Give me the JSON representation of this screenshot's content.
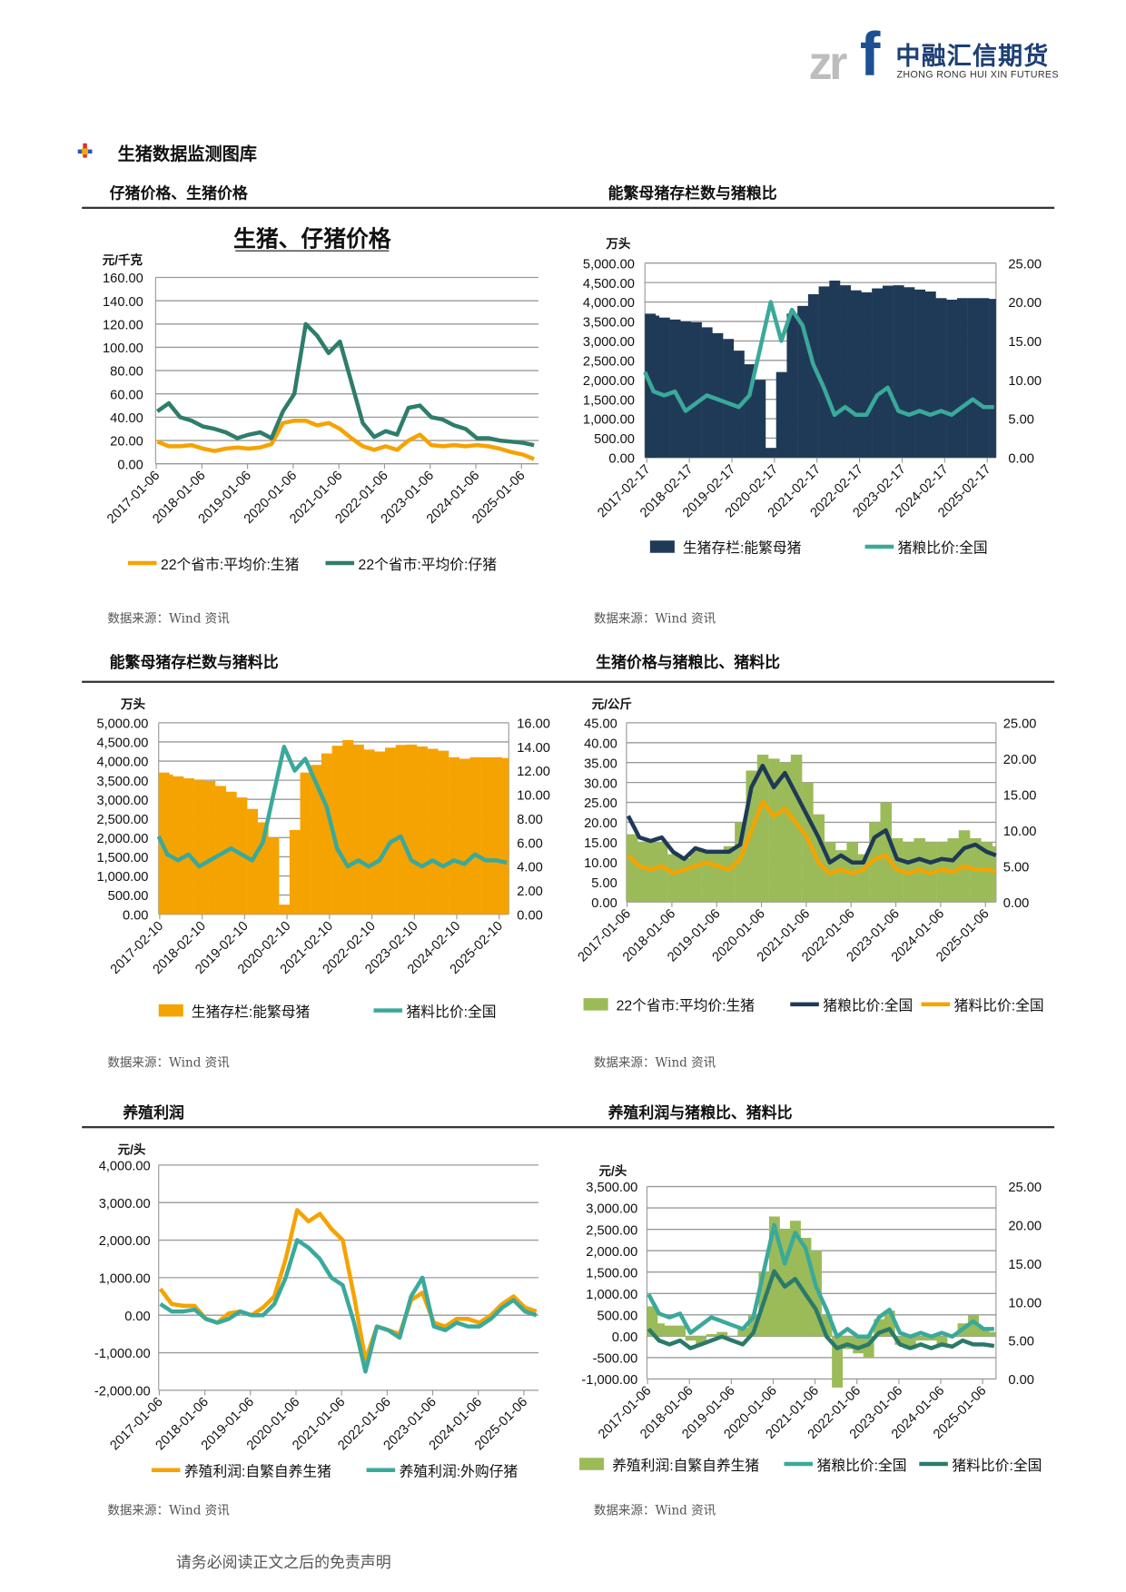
{
  "header": {
    "logo_zr": "zr",
    "logo_f": "f",
    "logo_cn": "中融汇信期货",
    "logo_en": "ZHONG RONG HUI XIN FUTURES"
  },
  "section_title": "生猪数据监测图库",
  "panels": [
    {
      "heading": "仔猪价格、生猪价格",
      "source": "数据来源：Wind 资讯"
    },
    {
      "heading": "能繁母猪存栏数与猪粮比",
      "source": "数据来源：Wind 资讯"
    },
    {
      "heading": "能繁母猪存栏数与猪料比",
      "source": "数据来源：Wind 资讯"
    },
    {
      "heading": "生猪价格与猪粮比、猪料比",
      "source": "数据来源：Wind 资讯"
    },
    {
      "heading": "养殖利润",
      "source": "数据来源：Wind 资讯"
    },
    {
      "heading": "养殖利润与猪粮比、猪料比",
      "source": "数据来源：Wind 资讯"
    }
  ],
  "footer": "请务必阅读正文之后的免责声明",
  "chart_data": [
    {
      "type": "line",
      "title": "生猪、仔猪价格",
      "ylabel": "元/千克",
      "ylim": [
        0,
        160
      ],
      "yticks_left": [
        "0.00",
        "20.00",
        "40.00",
        "60.00",
        "80.00",
        "100.00",
        "120.00",
        "140.00",
        "160.00"
      ],
      "xlim": [
        "2017-01-01",
        "2025-05-20"
      ],
      "xticks": [
        "2017-01-06",
        "2018-01-06",
        "2019-01-06",
        "2020-01-06",
        "2021-01-06",
        "2022-01-06",
        "2023-01-06",
        "2024-01-06",
        "2025-01-06"
      ],
      "grid": true,
      "legend": "bottom",
      "x": [
        "2017-01",
        "2017-04",
        "2017-07",
        "2017-10",
        "2018-01",
        "2018-04",
        "2018-07",
        "2018-10",
        "2019-01",
        "2019-04",
        "2019-07",
        "2019-10",
        "2020-01",
        "2020-04",
        "2020-07",
        "2020-10",
        "2021-01",
        "2021-04",
        "2021-07",
        "2021-10",
        "2022-01",
        "2022-04",
        "2022-07",
        "2022-10",
        "2023-01",
        "2023-04",
        "2023-07",
        "2023-10",
        "2024-01",
        "2024-04",
        "2024-07",
        "2024-10",
        "2025-01",
        "2025-04"
      ],
      "series": [
        {
          "name": "22个省市:平均价:生猪",
          "axis": "left",
          "kind": "line",
          "color": "#f5a300",
          "values": [
            19,
            15,
            15,
            16,
            13,
            11,
            13,
            14,
            13,
            14,
            17,
            35,
            37,
            37,
            33,
            35,
            30,
            22,
            15,
            12,
            15,
            12,
            20,
            25,
            16,
            15,
            16,
            15,
            16,
            15,
            13,
            10,
            8,
            4
          ]
        },
        {
          "name": "22个省市:平均价:仔猪",
          "axis": "left",
          "kind": "line",
          "color": "#2e7d6b",
          "values": [
            45,
            52,
            40,
            37,
            32,
            30,
            27,
            22,
            25,
            27,
            22,
            45,
            60,
            120,
            110,
            95,
            105,
            70,
            35,
            23,
            28,
            25,
            48,
            50,
            40,
            38,
            33,
            30,
            22,
            22,
            20,
            19,
            18,
            16
          ]
        }
      ]
    },
    {
      "type": "bar+line",
      "ylabel": "万头",
      "ylim": [
        0,
        5000
      ],
      "yticks_left": [
        "0.00",
        "500.00",
        "1,000.00",
        "1,500.00",
        "2,000.00",
        "2,500.00",
        "3,000.00",
        "3,500.00",
        "4,000.00",
        "4,500.00",
        "5,000.00"
      ],
      "ylim_right": [
        0,
        25
      ],
      "yticks_right": [
        "0.00",
        "5.00",
        "10.00",
        "15.00",
        "20.00",
        "25.00"
      ],
      "xlim": [
        "2017-02-01",
        "2025-05-01"
      ],
      "xticks": [
        "2017-02-17",
        "2018-02-17",
        "2019-02-17",
        "2020-02-17",
        "2021-02-17",
        "2022-02-17",
        "2023-02-17",
        "2024-02-17",
        "2025-02-17"
      ],
      "grid": true,
      "legend": "bottom",
      "x": [
        "2017-01",
        "2017-04",
        "2017-07",
        "2017-10",
        "2018-01",
        "2018-04",
        "2018-07",
        "2018-10",
        "2019-01",
        "2019-04",
        "2019-07",
        "2019-10",
        "2020-01",
        "2020-04",
        "2020-07",
        "2020-10",
        "2021-01",
        "2021-04",
        "2021-07",
        "2021-10",
        "2022-01",
        "2022-04",
        "2022-07",
        "2022-10",
        "2023-01",
        "2023-04",
        "2023-07",
        "2023-10",
        "2024-01",
        "2024-04",
        "2024-07",
        "2024-10",
        "2025-01",
        "2025-04"
      ],
      "series": [
        {
          "name": "生猪存栏:能繁母猪",
          "axis": "left",
          "kind": "area",
          "color": "#1f3a56",
          "values": [
            3700,
            3650,
            3600,
            3550,
            3500,
            3480,
            3350,
            3200,
            3050,
            2750,
            2400,
            2000,
            250,
            2200,
            3700,
            3900,
            4200,
            4400,
            4550,
            4430,
            4300,
            4250,
            4350,
            4420,
            4430,
            4380,
            4320,
            4270,
            4100,
            4060,
            4100,
            4100,
            4100,
            4080
          ]
        },
        {
          "name": "猪粮比价:全国",
          "axis": "right",
          "kind": "line",
          "color": "#3aa99b",
          "values": [
            11,
            8.5,
            8,
            8.5,
            6,
            7,
            8,
            7.5,
            7,
            6.5,
            8,
            14,
            20,
            15,
            19,
            17,
            12,
            9,
            5.5,
            6.5,
            5.5,
            5.5,
            8,
            9,
            6,
            5.5,
            6,
            5.5,
            6,
            5.5,
            6.5,
            7.5,
            6.5,
            6.5
          ]
        }
      ]
    },
    {
      "type": "bar+line",
      "ylabel": "万头",
      "ylim": [
        0,
        5000
      ],
      "yticks_left": [
        "0.00",
        "500.00",
        "1,000.00",
        "1,500.00",
        "2,000.00",
        "2,500.00",
        "3,000.00",
        "3,500.00",
        "4,000.00",
        "4,500.00",
        "5,000.00"
      ],
      "ylim_right": [
        0,
        16
      ],
      "yticks_right": [
        "0.00",
        "2.00",
        "4.00",
        "6.00",
        "8.00",
        "10.00",
        "12.00",
        "14.00",
        "16.00"
      ],
      "xlim": [
        "2017-02-01",
        "2025-05-01"
      ],
      "xticks": [
        "2017-02-10",
        "2018-02-10",
        "2019-02-10",
        "2020-02-10",
        "2021-02-10",
        "2022-02-10",
        "2023-02-10",
        "2024-02-10",
        "2025-02-10"
      ],
      "grid": true,
      "legend": "bottom",
      "x": [
        "2017-01",
        "2017-04",
        "2017-07",
        "2017-10",
        "2018-01",
        "2018-04",
        "2018-07",
        "2018-10",
        "2019-01",
        "2019-04",
        "2019-07",
        "2019-10",
        "2020-01",
        "2020-04",
        "2020-07",
        "2020-10",
        "2021-01",
        "2021-04",
        "2021-07",
        "2021-10",
        "2022-01",
        "2022-04",
        "2022-07",
        "2022-10",
        "2023-01",
        "2023-04",
        "2023-07",
        "2023-10",
        "2024-01",
        "2024-04",
        "2024-07",
        "2024-10",
        "2025-01",
        "2025-04"
      ],
      "series": [
        {
          "name": "生猪存栏:能繁母猪",
          "axis": "left",
          "kind": "area",
          "color": "#f5a300",
          "values": [
            3700,
            3650,
            3600,
            3550,
            3500,
            3480,
            3350,
            3200,
            3050,
            2750,
            2400,
            2000,
            250,
            2200,
            3700,
            3900,
            4200,
            4400,
            4550,
            4430,
            4300,
            4250,
            4350,
            4420,
            4430,
            4380,
            4320,
            4270,
            4100,
            4060,
            4100,
            4100,
            4100,
            4080
          ]
        },
        {
          "name": "猪料比价:全国",
          "axis": "right",
          "kind": "line",
          "color": "#3aa99b",
          "values": [
            6.5,
            5,
            4.5,
            5,
            4,
            4.5,
            5,
            5.5,
            5,
            4.5,
            6,
            10,
            14,
            12,
            13,
            11,
            9,
            5.5,
            4,
            4.5,
            4,
            4.5,
            6,
            6.5,
            4.5,
            4,
            4.5,
            4,
            4.5,
            4.2,
            5,
            4.5,
            4.5,
            4.3
          ]
        }
      ]
    },
    {
      "type": "bar+line",
      "ylabel": "元/公斤",
      "ylim": [
        0,
        45
      ],
      "yticks_left": [
        "0.00",
        "5.00",
        "10.00",
        "15.00",
        "20.00",
        "25.00",
        "30.00",
        "35.00",
        "40.00",
        "45.00"
      ],
      "ylim_right": [
        0,
        25
      ],
      "yticks_right": [
        "0.00",
        "5.00",
        "10.00",
        "15.00",
        "20.00",
        "25.00"
      ],
      "xlim": [
        "2017-01-01",
        "2025-04-01"
      ],
      "xticks": [
        "2017-01-06",
        "2018-01-06",
        "2019-01-06",
        "2020-01-06",
        "2021-01-06",
        "2022-01-06",
        "2023-01-06",
        "2024-01-06",
        "2025-01-06"
      ],
      "grid": true,
      "legend": "bottom",
      "x": [
        "2017-01",
        "2017-04",
        "2017-07",
        "2017-10",
        "2018-01",
        "2018-04",
        "2018-07",
        "2018-10",
        "2019-01",
        "2019-04",
        "2019-07",
        "2019-10",
        "2020-01",
        "2020-04",
        "2020-07",
        "2020-10",
        "2021-01",
        "2021-04",
        "2021-07",
        "2021-10",
        "2022-01",
        "2022-04",
        "2022-07",
        "2022-10",
        "2023-01",
        "2023-04",
        "2023-07",
        "2023-10",
        "2024-01",
        "2024-04",
        "2024-07",
        "2024-10",
        "2025-01",
        "2025-04"
      ],
      "series": [
        {
          "name": "22个省市:平均价:生猪",
          "axis": "left",
          "kind": "area",
          "color": "#9bbb59",
          "values": [
            17,
            15,
            15,
            15,
            12,
            11,
            13,
            13,
            13,
            14,
            20,
            33,
            37,
            36,
            35,
            37,
            30,
            22,
            15,
            13,
            15,
            12,
            20,
            25,
            16,
            15,
            16,
            15,
            15,
            16,
            18,
            16,
            15,
            14
          ]
        },
        {
          "name": "猪粮比价:全国",
          "axis": "right",
          "kind": "line",
          "color": "#1f3a56",
          "values": [
            12,
            9,
            8.5,
            9,
            7,
            6,
            7.5,
            7,
            7,
            7,
            8,
            16,
            19,
            16,
            18,
            15,
            12,
            9,
            5.5,
            6.5,
            5.5,
            5.5,
            9,
            10,
            6,
            5.5,
            6,
            5.5,
            6,
            5.8,
            7.5,
            8,
            7,
            6.5
          ]
        },
        {
          "name": "猪料比价:全国",
          "axis": "right",
          "kind": "line",
          "color": "#f5a300",
          "values": [
            6.5,
            5,
            4.5,
            5,
            4,
            4.5,
            5,
            5.5,
            5,
            4.5,
            6,
            10,
            14,
            12,
            13,
            11,
            9,
            5.5,
            4,
            4.5,
            4,
            4.5,
            6,
            6.5,
            4.5,
            4,
            4.5,
            4,
            4.5,
            4.2,
            5,
            4.5,
            4.5,
            4.3
          ]
        }
      ]
    },
    {
      "type": "line",
      "ylabel": "元/头",
      "ylim": [
        -2000,
        4000
      ],
      "yticks_left": [
        "-2,000.00",
        "-1,000.00",
        "0.00",
        "1,000.00",
        "2,000.00",
        "3,000.00",
        "4,000.00"
      ],
      "xlim": [
        "2017-01-01",
        "2025-05-01"
      ],
      "xticks": [
        "2017-01-06",
        "2018-01-06",
        "2019-01-06",
        "2020-01-06",
        "2021-01-06",
        "2022-01-06",
        "2023-01-06",
        "2024-01-06",
        "2025-01-06"
      ],
      "grid": true,
      "legend": "bottom",
      "x": [
        "2017-01",
        "2017-04",
        "2017-07",
        "2017-10",
        "2018-01",
        "2018-04",
        "2018-07",
        "2018-10",
        "2019-01",
        "2019-04",
        "2019-07",
        "2019-10",
        "2020-01",
        "2020-04",
        "2020-07",
        "2020-10",
        "2021-01",
        "2021-04",
        "2021-07",
        "2021-10",
        "2022-01",
        "2022-04",
        "2022-07",
        "2022-10",
        "2023-01",
        "2023-04",
        "2023-07",
        "2023-10",
        "2024-01",
        "2024-04",
        "2024-07",
        "2024-10",
        "2025-01",
        "2025-04"
      ],
      "series": [
        {
          "name": "养殖利润:自繁自养生猪",
          "axis": "left",
          "kind": "line",
          "color": "#f5a300",
          "values": [
            700,
            300,
            250,
            250,
            -100,
            -200,
            50,
            100,
            0,
            200,
            500,
            1500,
            2800,
            2500,
            2700,
            2300,
            2000,
            500,
            -1200,
            -300,
            -400,
            -500,
            400,
            600,
            -200,
            -300,
            -100,
            -100,
            -200,
            0,
            300,
            500,
            200,
            100
          ]
        },
        {
          "name": "养殖利润:外购仔猪",
          "axis": "left",
          "kind": "line",
          "color": "#3aa99b",
          "values": [
            300,
            100,
            100,
            150,
            -100,
            -200,
            -100,
            100,
            0,
            0,
            300,
            1000,
            2000,
            1800,
            1500,
            1000,
            800,
            -200,
            -1500,
            -300,
            -400,
            -600,
            500,
            1000,
            -300,
            -400,
            -200,
            -300,
            -300,
            -100,
            200,
            400,
            100,
            0
          ]
        }
      ]
    },
    {
      "type": "bar+line",
      "ylabel": "元/头",
      "ylim": [
        -1000,
        3500
      ],
      "yticks_left": [
        "-1,000.00",
        "-500.00",
        "0.00",
        "500.00",
        "1,000.00",
        "1,500.00",
        "2,000.00",
        "2,500.00",
        "3,000.00",
        "3,500.00"
      ],
      "ylim_right": [
        0,
        25
      ],
      "yticks_right": [
        "0.00",
        "5.00",
        "10.00",
        "15.00",
        "20.00",
        "25.00"
      ],
      "xlim": [
        "2017-01-01",
        "2025-05-01"
      ],
      "xticks": [
        "2017-01-06",
        "2018-01-06",
        "2019-01-06",
        "2020-01-06",
        "2021-01-06",
        "2022-01-06",
        "2023-01-06",
        "2024-01-06",
        "2025-01-06"
      ],
      "grid": true,
      "legend": "bottom",
      "x": [
        "2017-01",
        "2017-04",
        "2017-07",
        "2017-10",
        "2018-01",
        "2018-04",
        "2018-07",
        "2018-10",
        "2019-01",
        "2019-04",
        "2019-07",
        "2019-10",
        "2020-01",
        "2020-04",
        "2020-07",
        "2020-10",
        "2021-01",
        "2021-04",
        "2021-07",
        "2021-10",
        "2022-01",
        "2022-04",
        "2022-07",
        "2022-10",
        "2023-01",
        "2023-04",
        "2023-07",
        "2023-10",
        "2024-01",
        "2024-04",
        "2024-07",
        "2024-10",
        "2025-01",
        "2025-04"
      ],
      "series": [
        {
          "name": "养殖利润:自繁自养生猪",
          "axis": "left",
          "kind": "area",
          "color": "#9bbb59",
          "values": [
            700,
            300,
            250,
            250,
            -100,
            -200,
            50,
            100,
            0,
            200,
            500,
            1500,
            2800,
            2500,
            2700,
            2300,
            2000,
            500,
            -1200,
            -300,
            -400,
            -500,
            400,
            600,
            -200,
            -300,
            -100,
            -100,
            -200,
            0,
            300,
            500,
            200,
            100
          ]
        },
        {
          "name": "猪粮比价:全国",
          "axis": "right",
          "kind": "line",
          "color": "#3aa99b",
          "values": [
            11,
            8.5,
            8,
            8.5,
            6,
            7,
            8,
            7.5,
            7,
            6.5,
            8,
            14,
            20,
            15,
            19,
            17,
            12,
            9,
            5.5,
            6.5,
            5.5,
            5.5,
            8,
            9,
            6,
            5.5,
            6,
            5.5,
            6,
            5.5,
            6.5,
            7.5,
            6.5,
            6.5
          ]
        },
        {
          "name": "猪料比价:全国",
          "axis": "right",
          "kind": "line",
          "color": "#2a7a6a",
          "values": [
            6.5,
            5,
            4.5,
            5,
            4,
            4.5,
            5,
            5.5,
            5,
            4.5,
            6,
            10,
            14,
            12,
            13,
            11,
            9,
            5.5,
            4,
            4.5,
            4,
            4.5,
            6,
            6.5,
            4.5,
            4,
            4.5,
            4,
            4.5,
            4.2,
            5,
            4.5,
            4.5,
            4.3
          ]
        }
      ]
    }
  ]
}
